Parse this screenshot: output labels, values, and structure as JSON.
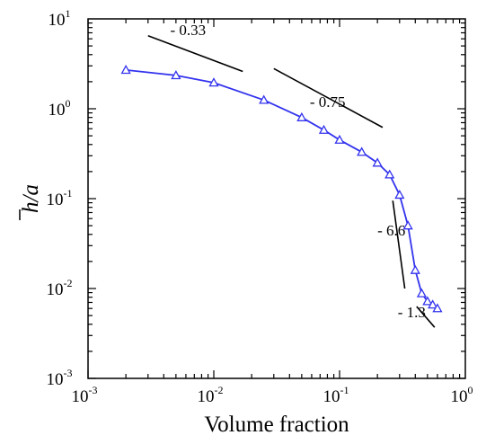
{
  "chart_data": {
    "type": "line",
    "xlabel": "Volume fraction",
    "ylabel_main": "h",
    "ylabel_rest": "/a",
    "xscale": "log",
    "yscale": "log",
    "xlim": [
      0.001,
      1
    ],
    "ylim": [
      0.001,
      10
    ],
    "grid": false,
    "line_color": "#3333ee",
    "xticks": [
      {
        "value": 0.001,
        "base": "10",
        "exp": "-3"
      },
      {
        "value": 0.01,
        "base": "10",
        "exp": "-2"
      },
      {
        "value": 0.1,
        "base": "10",
        "exp": "-1"
      },
      {
        "value": 1,
        "base": "10",
        "exp": "0"
      }
    ],
    "yticks": [
      {
        "value": 0.001,
        "base": "10",
        "exp": "-3"
      },
      {
        "value": 0.01,
        "base": "10",
        "exp": "-2"
      },
      {
        "value": 0.1,
        "base": "10",
        "exp": "-1"
      },
      {
        "value": 1,
        "base": "10",
        "exp": "0"
      },
      {
        "value": 10,
        "base": "10",
        "exp": "1"
      }
    ],
    "series": [
      {
        "marker": "triangle",
        "x": [
          0.002,
          0.005,
          0.01,
          0.025,
          0.05,
          0.075,
          0.1,
          0.15,
          0.2,
          0.25,
          0.3,
          0.35,
          0.4,
          0.45,
          0.5,
          0.55,
          0.6
        ],
        "y": [
          2.7,
          2.35,
          1.95,
          1.25,
          0.8,
          0.58,
          0.45,
          0.33,
          0.25,
          0.185,
          0.11,
          0.05,
          0.016,
          0.0088,
          0.0072,
          0.0066,
          0.006
        ]
      }
    ],
    "annotations": [
      {
        "label": "- 0.33",
        "x1": 0.003,
        "y1": 6.5,
        "x2": 0.017,
        "y2": 2.6,
        "lx": 0.0045,
        "ly": 6.6
      },
      {
        "label": "- 0.75",
        "x1": 0.03,
        "y1": 2.8,
        "x2": 0.22,
        "y2": 0.62,
        "lx": 0.058,
        "ly": 1.05
      },
      {
        "label": "- 6.6",
        "x1": 0.265,
        "y1": 0.095,
        "x2": 0.33,
        "y2": 0.01,
        "lx": 0.2,
        "ly": 0.039
      },
      {
        "label": "- 1.3",
        "x1": 0.41,
        "y1": 0.0063,
        "x2": 0.57,
        "y2": 0.0037,
        "lx": 0.29,
        "ly": 0.0048
      }
    ]
  }
}
